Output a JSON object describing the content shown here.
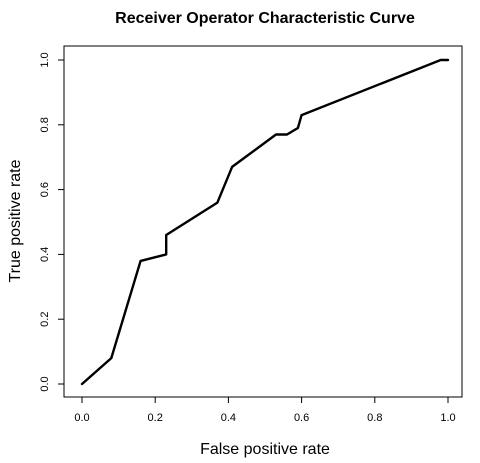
{
  "chart_data": {
    "type": "line",
    "title": "Receiver Operator Characteristic Curve",
    "xlabel": "False positive rate",
    "ylabel": "True positive rate",
    "xlim": [
      0,
      1
    ],
    "ylim": [
      0,
      1
    ],
    "x_ticks": [
      "0.0",
      "0.2",
      "0.4",
      "0.6",
      "0.8",
      "1.0"
    ],
    "y_ticks": [
      "0.0",
      "0.2",
      "0.4",
      "0.6",
      "0.8",
      "1.0"
    ],
    "grid": false,
    "series": [
      {
        "x": [
          0.0,
          0.08,
          0.16,
          0.23,
          0.23,
          0.37,
          0.41,
          0.53,
          0.56,
          0.59,
          0.6,
          0.98,
          1.0
        ],
        "y": [
          0.0,
          0.08,
          0.38,
          0.4,
          0.46,
          0.56,
          0.67,
          0.77,
          0.77,
          0.79,
          0.83,
          1.0,
          1.0
        ]
      }
    ]
  }
}
